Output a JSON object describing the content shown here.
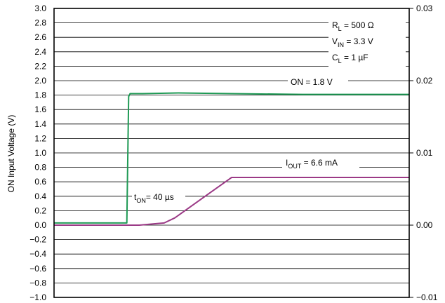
{
  "chart_data": {
    "type": "line",
    "title": "",
    "xlabel": "",
    "ylabel": "ON Input Voltage (V)",
    "ylim": [
      -1.0,
      3.0
    ],
    "yticks": [
      "3.0",
      "2.8",
      "2.6",
      "2.4",
      "2.2",
      "2.0",
      "1.8",
      "1.6",
      "1.4",
      "1.2",
      "1.0",
      "0.8",
      "0.6",
      "0.4",
      "0.2",
      "0.0",
      "−0.2",
      "−0.4",
      "−0.6",
      "−0.8",
      "−1.0"
    ],
    "y2lim": [
      -0.01,
      0.03
    ],
    "y2ticks": [
      "0.03",
      "0.02",
      "0.01",
      "0.00",
      "−0.01"
    ],
    "xlim": [
      0,
      100
    ],
    "grid": true,
    "series": [
      {
        "id": "on-voltage",
        "axis": "left",
        "color": "#1f9a55",
        "x": [
          0,
          20.5,
          21.0,
          21.4,
          25,
          35,
          50,
          70,
          100
        ],
        "y": [
          0.03,
          0.03,
          1.78,
          1.82,
          1.82,
          1.83,
          1.82,
          1.81,
          1.81
        ]
      },
      {
        "id": "output-current",
        "axis": "right",
        "color": "#9b3a86",
        "x": [
          0,
          24,
          31,
          34,
          44,
          50,
          100
        ],
        "y": [
          0,
          0,
          0.0003,
          0.001,
          0.0045,
          0.0066,
          0.0066
        ]
      }
    ],
    "annotations": {
      "rl": {
        "main": "R",
        "sub": "L",
        "rest": " = 500 Ω"
      },
      "vin": {
        "main": "V",
        "sub": "IN",
        "rest": " = 3.3 V"
      },
      "cl": {
        "main": "C",
        "sub": "L",
        "rest": " = 1 µF"
      },
      "on": "ON = 1.8 V",
      "iout": {
        "main": "I",
        "sub": "OUT",
        "rest": " = 6.6 mA"
      },
      "ton": {
        "main": "t",
        "sub": "ON",
        "rest": "= 40 µs"
      }
    }
  }
}
